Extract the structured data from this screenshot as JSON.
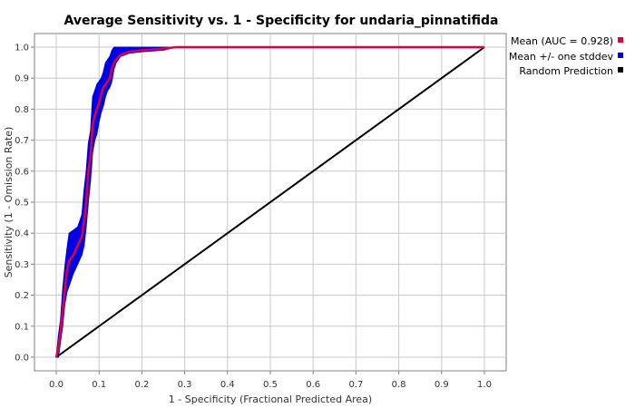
{
  "chart_data": {
    "type": "line",
    "title": "Average Sensitivity vs. 1 - Specificity for undaria_pinnatifida",
    "xlabel": "1 - Specificity (Fractional Predicted Area)",
    "ylabel": "Sensitivity (1 - Omission Rate)",
    "xlim": [
      0,
      1
    ],
    "ylim": [
      0,
      1
    ],
    "xticks": [
      "0.0",
      "0.1",
      "0.2",
      "0.3",
      "0.4",
      "0.5",
      "0.6",
      "0.7",
      "0.8",
      "0.9",
      "1.0"
    ],
    "yticks": [
      "0.0",
      "0.1",
      "0.2",
      "0.3",
      "0.4",
      "0.5",
      "0.6",
      "0.7",
      "0.8",
      "0.9",
      "1.0"
    ],
    "grid": true,
    "legend_position": "right",
    "series": [
      {
        "name": "Mean (AUC = 0.928)",
        "color": "#e0003c",
        "x": [
          0.0,
          0.005,
          0.01,
          0.015,
          0.02,
          0.025,
          0.03,
          0.04,
          0.05,
          0.06,
          0.065,
          0.07,
          0.075,
          0.08,
          0.085,
          0.09,
          0.095,
          0.1,
          0.105,
          0.11,
          0.115,
          0.12,
          0.125,
          0.13,
          0.135,
          0.14,
          0.15,
          0.16,
          0.17,
          0.2,
          0.25,
          0.28,
          0.3,
          0.5,
          0.7,
          1.0
        ],
        "y": [
          0.0,
          0.03,
          0.08,
          0.15,
          0.22,
          0.28,
          0.31,
          0.33,
          0.36,
          0.39,
          0.44,
          0.5,
          0.6,
          0.65,
          0.75,
          0.78,
          0.8,
          0.82,
          0.85,
          0.87,
          0.88,
          0.89,
          0.9,
          0.93,
          0.95,
          0.96,
          0.975,
          0.98,
          0.985,
          0.99,
          0.995,
          1.0,
          1.0,
          1.0,
          1.0,
          1.0
        ]
      },
      {
        "name": "Mean +/- one stddev",
        "color": "#0000e6",
        "type": "band",
        "x": [
          0.0,
          0.005,
          0.01,
          0.015,
          0.02,
          0.025,
          0.03,
          0.04,
          0.05,
          0.06,
          0.065,
          0.07,
          0.075,
          0.08,
          0.085,
          0.09,
          0.095,
          0.1,
          0.105,
          0.11,
          0.115,
          0.12,
          0.125,
          0.13,
          0.135,
          0.14,
          0.15,
          0.16,
          0.17,
          0.2,
          0.25,
          0.28,
          0.3,
          0.5,
          0.7,
          1.0
        ],
        "lower": [
          0.0,
          0.0,
          0.05,
          0.1,
          0.17,
          0.21,
          0.23,
          0.27,
          0.3,
          0.33,
          0.36,
          0.42,
          0.5,
          0.57,
          0.66,
          0.7,
          0.72,
          0.76,
          0.79,
          0.81,
          0.84,
          0.86,
          0.87,
          0.89,
          0.93,
          0.95,
          0.97,
          0.975,
          0.98,
          0.985,
          0.99,
          1.0,
          1.0,
          1.0,
          1.0,
          1.0
        ],
        "upper": [
          0.0,
          0.07,
          0.12,
          0.22,
          0.29,
          0.35,
          0.4,
          0.41,
          0.42,
          0.46,
          0.54,
          0.6,
          0.69,
          0.73,
          0.84,
          0.86,
          0.88,
          0.89,
          0.9,
          0.92,
          0.95,
          0.96,
          0.97,
          0.99,
          1.0,
          1.0,
          1.0,
          1.0,
          1.0,
          1.0,
          1.0,
          1.0,
          1.0,
          1.0,
          1.0,
          1.0
        ]
      },
      {
        "name": "Random Prediction",
        "color": "#000000",
        "x": [
          0,
          1
        ],
        "y": [
          0,
          1
        ]
      }
    ]
  }
}
